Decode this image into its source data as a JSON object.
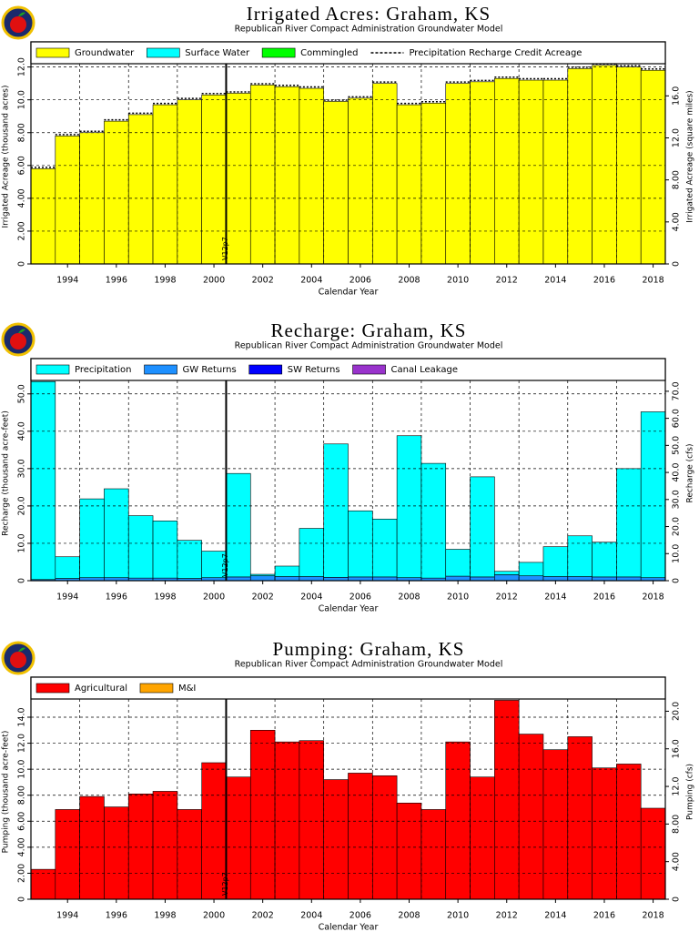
{
  "chart_data": [
    {
      "type": "stacked-step",
      "title": "Irrigated Acres: Graham, KS",
      "subtitle": "Republican River Compact Administration Groundwater Model",
      "x_label": "Calendar Year",
      "y_label": "Irrigated Acreage (thousand acres)",
      "y2_label": "Irrigated Acreage (square miles)",
      "x": [
        1993,
        1994,
        1995,
        1996,
        1997,
        1998,
        1999,
        2000,
        2001,
        2002,
        2003,
        2004,
        2005,
        2006,
        2007,
        2008,
        2009,
        2010,
        2011,
        2012,
        2013,
        2014,
        2015,
        2016,
        2017,
        2018
      ],
      "xlim": [
        1992.5,
        2018.5
      ],
      "xticks": [
        1994,
        1996,
        1998,
        2000,
        2002,
        2004,
        2006,
        2008,
        2010,
        2012,
        2014,
        2016,
        2018
      ],
      "ylim": [
        0,
        12.2
      ],
      "yticks": [
        0,
        {
          "value": 2,
          "label": "2.00"
        },
        {
          "value": 4,
          "label": "4.00"
        },
        {
          "value": 6,
          "label": "6.00"
        },
        {
          "value": 8,
          "label": "8.00"
        },
        {
          "value": 10,
          "label": "10.0"
        },
        {
          "value": 12,
          "label": "12.0"
        }
      ],
      "y2lim": [
        0,
        19.06
      ],
      "y2ticks": [
        0,
        {
          "value": 4,
          "label": "4.00"
        },
        {
          "value": 8,
          "label": "8.00"
        },
        {
          "value": 12,
          "label": "12.0"
        },
        {
          "value": 16,
          "label": "16.0"
        }
      ],
      "grid": true,
      "marker": {
        "x": 2000.5,
        "label": "V12p7"
      },
      "series": [
        {
          "name": "Groundwater",
          "color": "#ffff00",
          "values": [
            5.8,
            7.8,
            8.0,
            8.7,
            9.1,
            9.7,
            10.0,
            10.3,
            10.4,
            10.9,
            10.8,
            10.7,
            9.9,
            10.1,
            11.0,
            9.7,
            9.8,
            11.0,
            11.1,
            11.3,
            11.2,
            11.2,
            11.9,
            12.1,
            12.0,
            11.8
          ]
        },
        {
          "name": "Surface Water",
          "color": "#00ffff",
          "values": [
            0,
            0,
            0,
            0,
            0,
            0,
            0,
            0,
            0,
            0,
            0,
            0,
            0,
            0,
            0,
            0,
            0,
            0,
            0,
            0,
            0,
            0,
            0,
            0,
            0,
            0
          ]
        },
        {
          "name": "Commingled",
          "color": "#00ff00",
          "values": [
            0,
            0,
            0,
            0,
            0,
            0,
            0,
            0,
            0,
            0,
            0,
            0,
            0,
            0,
            0,
            0,
            0,
            0,
            0,
            0,
            0,
            0,
            0,
            0,
            0,
            0
          ]
        },
        {
          "name": "Precipitation Recharge Credit Acreage",
          "color": "#000000",
          "style": "dashed-line",
          "values": [
            5.8,
            7.8,
            8.0,
            8.7,
            9.1,
            9.7,
            10.0,
            10.3,
            10.4,
            10.9,
            10.8,
            10.7,
            9.9,
            10.1,
            11.0,
            9.7,
            9.8,
            11.0,
            11.1,
            11.3,
            11.2,
            11.2,
            11.9,
            12.1,
            12.0,
            11.8
          ]
        }
      ]
    },
    {
      "type": "stacked-step",
      "title": "Recharge: Graham, KS",
      "subtitle": "Republican River Compact Administration Groundwater Model",
      "x_label": "Calendar Year",
      "y_label": "Recharge (thousand acre-feet)",
      "y2_label": "Recharge (cfs)",
      "x": [
        1993,
        1994,
        1995,
        1996,
        1997,
        1998,
        1999,
        2000,
        2001,
        2002,
        2003,
        2004,
        2005,
        2006,
        2007,
        2008,
        2009,
        2010,
        2011,
        2012,
        2013,
        2014,
        2015,
        2016,
        2017,
        2018
      ],
      "xlim": [
        1992.5,
        2018.5
      ],
      "xticks": [
        1994,
        1996,
        1998,
        2000,
        2002,
        2004,
        2006,
        2008,
        2010,
        2012,
        2014,
        2016,
        2018
      ],
      "ylim": [
        0,
        53.6
      ],
      "yticks": [
        0,
        {
          "value": 10,
          "label": "10.0"
        },
        {
          "value": 20,
          "label": "20.0"
        },
        {
          "value": 30,
          "label": "30.0"
        },
        {
          "value": 40,
          "label": "40.0"
        },
        {
          "value": 50,
          "label": "50.0"
        }
      ],
      "y2lim": [
        0,
        74
      ],
      "y2ticks": [
        0,
        {
          "value": 10,
          "label": "10.0"
        },
        {
          "value": 20,
          "label": "20.0"
        },
        {
          "value": 30,
          "label": "30.0"
        },
        {
          "value": 40,
          "label": "40.0"
        },
        {
          "value": 50,
          "label": "50.0"
        },
        {
          "value": 60,
          "label": "60.0"
        },
        {
          "value": 70,
          "label": "70.0"
        }
      ],
      "grid": true,
      "marker": {
        "x": 2000.5,
        "label": "V12p7"
      },
      "series": [
        {
          "name": "Precipitation",
          "color": "#00ffff",
          "values": [
            53.0,
            5.8,
            21.1,
            23.8,
            16.7,
            15.3,
            10.2,
            7.1,
            27.7,
            0.4,
            2.8,
            12.9,
            35.7,
            17.7,
            15.5,
            38.0,
            30.7,
            7.2,
            26.8,
            0.9,
            3.6,
            8.0,
            10.9,
            9.3,
            29.0,
            44.4
          ]
        },
        {
          "name": "GW Returns",
          "color": "#1e90ff",
          "values": [
            0.3,
            0.6,
            0.8,
            0.8,
            0.7,
            0.7,
            0.6,
            0.8,
            1.0,
            1.3,
            1.1,
            1.1,
            0.9,
            1.0,
            1.0,
            0.8,
            0.7,
            1.2,
            1.0,
            1.6,
            1.3,
            1.1,
            1.1,
            1.0,
            1.0,
            0.8
          ]
        },
        {
          "name": "SW Returns",
          "color": "#0000ff",
          "values": [
            0,
            0,
            0,
            0,
            0,
            0,
            0,
            0,
            0,
            0,
            0,
            0,
            0,
            0,
            0,
            0,
            0,
            0,
            0,
            0,
            0,
            0,
            0,
            0,
            0,
            0
          ]
        },
        {
          "name": "Canal Leakage",
          "color": "#9933cc",
          "values": [
            0,
            0,
            0,
            0,
            0,
            0,
            0,
            0,
            0,
            0,
            0,
            0,
            0,
            0,
            0,
            0,
            0,
            0,
            0,
            0,
            0,
            0,
            0,
            0,
            0,
            0
          ]
        }
      ]
    },
    {
      "type": "stacked-step",
      "title": "Pumping: Graham, KS",
      "subtitle": "Republican River Compact Administration Groundwater Model",
      "x_label": "Calendar Year",
      "y_label": "Pumping (thousand acre-feet)",
      "y2_label": "Pumping (cfs)",
      "x": [
        1993,
        1994,
        1995,
        1996,
        1997,
        1998,
        1999,
        2000,
        2001,
        2002,
        2003,
        2004,
        2005,
        2006,
        2007,
        2008,
        2009,
        2010,
        2011,
        2012,
        2013,
        2014,
        2015,
        2016,
        2017,
        2018
      ],
      "xlim": [
        1992.5,
        2018.5
      ],
      "xticks": [
        1994,
        1996,
        1998,
        2000,
        2002,
        2004,
        2006,
        2008,
        2010,
        2012,
        2014,
        2016,
        2018
      ],
      "ylim": [
        0,
        15.4
      ],
      "yticks": [
        0,
        {
          "value": 2,
          "label": "2.00"
        },
        {
          "value": 4,
          "label": "4.00"
        },
        {
          "value": 6,
          "label": "6.00"
        },
        {
          "value": 8,
          "label": "8.00"
        },
        {
          "value": 10,
          "label": "10.0"
        },
        {
          "value": 12,
          "label": "12.0"
        },
        {
          "value": 14,
          "label": "14.0"
        }
      ],
      "y2lim": [
        0,
        21.3
      ],
      "y2ticks": [
        0,
        {
          "value": 4,
          "label": "4.00"
        },
        {
          "value": 8,
          "label": "8.00"
        },
        {
          "value": 12,
          "label": "12.0"
        },
        {
          "value": 16,
          "label": "16.0"
        },
        {
          "value": 20,
          "label": "20.0"
        }
      ],
      "grid": true,
      "marker": {
        "x": 2000.5,
        "label": "V12p7"
      },
      "series": [
        {
          "name": "Agricultural",
          "color": "#ff0000",
          "values": [
            2.3,
            6.9,
            7.9,
            7.1,
            8.1,
            8.3,
            6.9,
            10.5,
            9.4,
            13.0,
            12.1,
            12.2,
            9.2,
            9.7,
            9.5,
            7.4,
            6.9,
            12.1,
            9.4,
            15.3,
            12.7,
            11.5,
            12.5,
            10.1,
            10.4,
            7.0
          ]
        },
        {
          "name": "M&I",
          "color": "#ffa500",
          "values": [
            0,
            0,
            0,
            0,
            0,
            0,
            0,
            0,
            0,
            0,
            0,
            0,
            0,
            0,
            0,
            0,
            0,
            0,
            0,
            0,
            0,
            0,
            0,
            0,
            0,
            0
          ]
        }
      ]
    }
  ]
}
